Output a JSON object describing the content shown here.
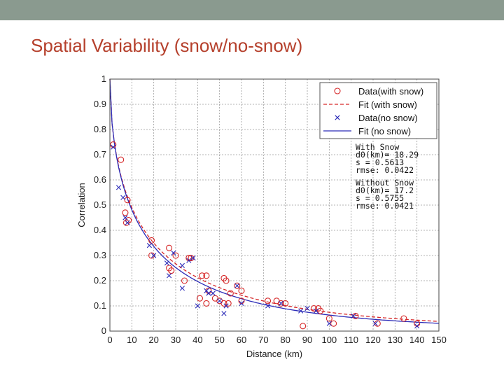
{
  "slide": {
    "title": "Spatial Variability (snow/no-snow)"
  },
  "colors": {
    "header_bar": "#8a9a8f",
    "title": "#b5402c",
    "with_snow": "#d62728",
    "no_snow": "#2b2bb8"
  },
  "chart_data": {
    "type": "scatter",
    "xlabel": "Distance (km)",
    "ylabel": "Correlation",
    "xlim": [
      0,
      150
    ],
    "ylim": [
      0,
      1
    ],
    "xticks": [
      0,
      10,
      20,
      30,
      40,
      50,
      60,
      70,
      80,
      90,
      100,
      110,
      120,
      130,
      140,
      150
    ],
    "yticks": [
      0,
      0.1,
      0.2,
      0.3,
      0.4,
      0.5,
      0.6,
      0.7,
      0.8,
      0.9,
      1
    ],
    "grid": true,
    "legend_position": "top-right",
    "legend": [
      {
        "label": "Data(with snow)",
        "kind": "marker-circle",
        "series": "with_snow"
      },
      {
        "label": "Fit (with snow)",
        "kind": "line-dashed",
        "series": "with_snow"
      },
      {
        "label": "Data(no snow)",
        "kind": "marker-x",
        "series": "no_snow"
      },
      {
        "label": "Fit (no snow)",
        "kind": "line-solid",
        "series": "no_snow"
      }
    ],
    "stats": {
      "with_snow": [
        "With Snow",
        "d0(km)= 18.29",
        "s = 0.5613",
        "rmse: 0.0422"
      ],
      "no_snow": [
        "Without Snow",
        "d0(km)= 17.2",
        "s = 0.5755",
        "rmse: 0.0421"
      ]
    },
    "series": [
      {
        "key": "with_snow",
        "marker": "circle",
        "color": "#d62728",
        "fit": {
          "d0": 18.29,
          "s": 0.5613,
          "dash": true
        },
        "points": [
          [
            1.5,
            0.74
          ],
          [
            5,
            0.68
          ],
          [
            7,
            0.47
          ],
          [
            8,
            0.52
          ],
          [
            7.5,
            0.43
          ],
          [
            8.5,
            0.44
          ],
          [
            19,
            0.36
          ],
          [
            19,
            0.3
          ],
          [
            27,
            0.33
          ],
          [
            27,
            0.25
          ],
          [
            28,
            0.24
          ],
          [
            30,
            0.3
          ],
          [
            34,
            0.2
          ],
          [
            36,
            0.29
          ],
          [
            37,
            0.29
          ],
          [
            41,
            0.13
          ],
          [
            42,
            0.22
          ],
          [
            44,
            0.22
          ],
          [
            45,
            0.16
          ],
          [
            44,
            0.11
          ],
          [
            48,
            0.13
          ],
          [
            50,
            0.12
          ],
          [
            52,
            0.21
          ],
          [
            53,
            0.2
          ],
          [
            52,
            0.11
          ],
          [
            54,
            0.11
          ],
          [
            55,
            0.15
          ],
          [
            58,
            0.18
          ],
          [
            60,
            0.16
          ],
          [
            60,
            0.12
          ],
          [
            72,
            0.12
          ],
          [
            76,
            0.12
          ],
          [
            78,
            0.11
          ],
          [
            80,
            0.11
          ],
          [
            88,
            0.02
          ],
          [
            93,
            0.09
          ],
          [
            95,
            0.09
          ],
          [
            96,
            0.08
          ],
          [
            100,
            0.05
          ],
          [
            102,
            0.03
          ],
          [
            112,
            0.06
          ],
          [
            122,
            0.03
          ],
          [
            134,
            0.05
          ],
          [
            140,
            0.03
          ]
        ]
      },
      {
        "key": "no_snow",
        "marker": "x",
        "color": "#2b2bb8",
        "fit": {
          "d0": 17.2,
          "s": 0.5755,
          "dash": false
        },
        "points": [
          [
            1.5,
            0.73
          ],
          [
            4,
            0.57
          ],
          [
            6,
            0.53
          ],
          [
            7,
            0.45
          ],
          [
            8,
            0.43
          ],
          [
            18,
            0.34
          ],
          [
            20,
            0.3
          ],
          [
            26,
            0.27
          ],
          [
            27,
            0.22
          ],
          [
            29,
            0.31
          ],
          [
            33,
            0.26
          ],
          [
            33,
            0.17
          ],
          [
            36,
            0.28
          ],
          [
            38,
            0.29
          ],
          [
            40,
            0.1
          ],
          [
            44,
            0.16
          ],
          [
            45,
            0.15
          ],
          [
            47,
            0.15
          ],
          [
            50,
            0.12
          ],
          [
            52,
            0.07
          ],
          [
            53,
            0.1
          ],
          [
            58,
            0.18
          ],
          [
            60,
            0.11
          ],
          [
            72,
            0.1
          ],
          [
            78,
            0.11
          ],
          [
            87,
            0.08
          ],
          [
            90,
            0.09
          ],
          [
            94,
            0.08
          ],
          [
            100,
            0.03
          ],
          [
            111,
            0.06
          ],
          [
            121,
            0.03
          ],
          [
            140,
            0.02
          ]
        ]
      }
    ]
  }
}
